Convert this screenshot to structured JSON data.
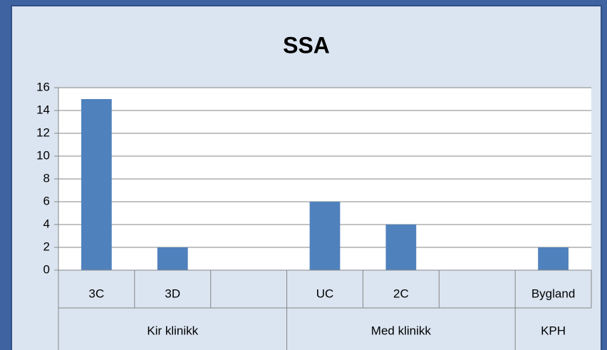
{
  "chart_data": {
    "type": "bar",
    "title": "SSA",
    "groups": [
      {
        "name": "Kir klinikk",
        "categories": [
          "3C",
          "3D",
          null
        ],
        "values": [
          15,
          2,
          null
        ]
      },
      {
        "name": "Med klinikk",
        "categories": [
          "UC",
          "2C",
          null
        ],
        "values": [
          6,
          4,
          null
        ]
      },
      {
        "name": "KPH",
        "categories": [
          "Bygland"
        ],
        "values": [
          2
        ]
      }
    ],
    "color": "#4f81bd",
    "ylim": [
      0,
      16
    ],
    "yticks": [
      0,
      2,
      4,
      6,
      8,
      10,
      12,
      14,
      16
    ],
    "grid": true
  }
}
